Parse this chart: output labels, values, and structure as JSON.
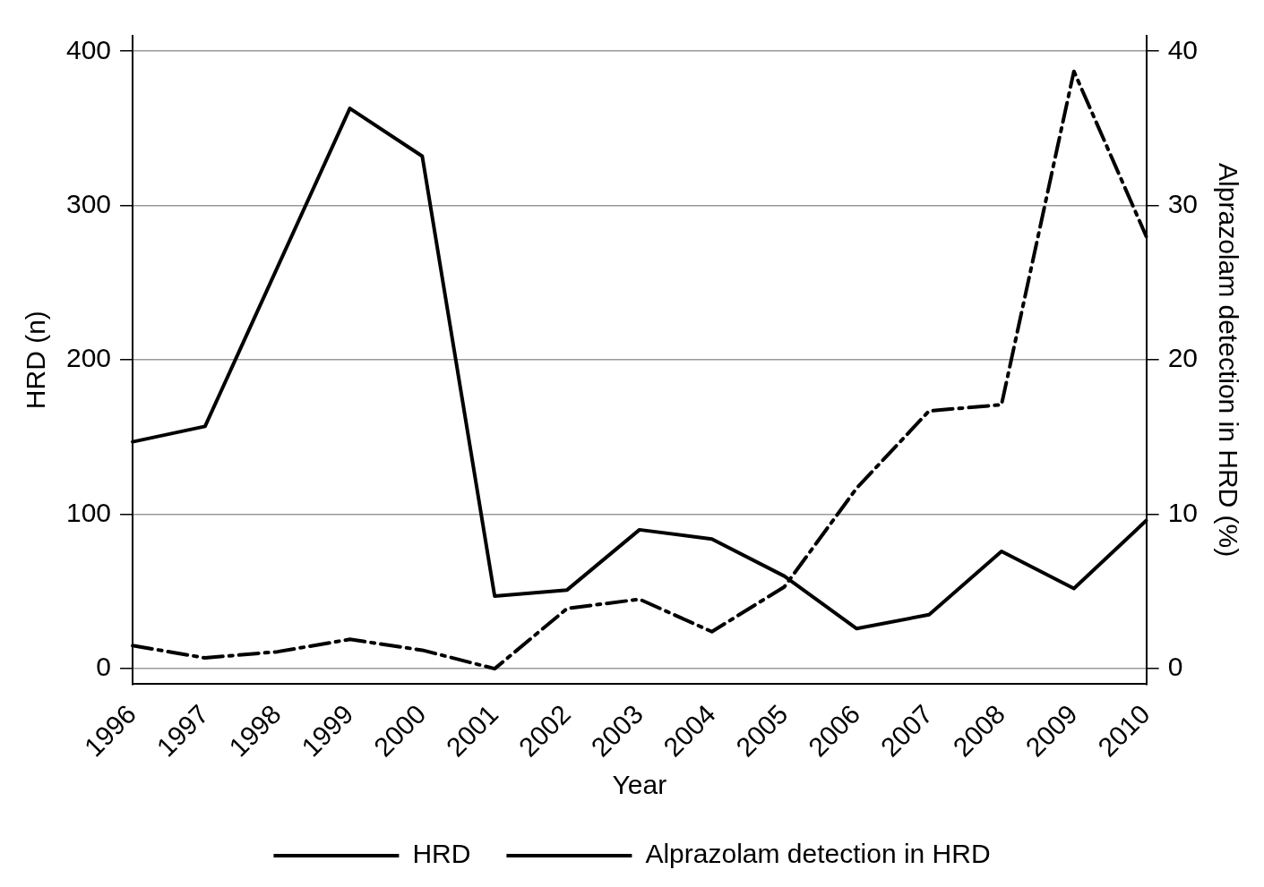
{
  "chart_data": {
    "type": "line",
    "xlabel": "Year",
    "ylabel": "HRD (n)",
    "y2label": "Alprazolam detection in HRD (%)",
    "categories": [
      "1996",
      "1997",
      "1998",
      "1999",
      "2000",
      "2001",
      "2002",
      "2003",
      "2004",
      "2005",
      "2006",
      "2007",
      "2008",
      "2009",
      "2010"
    ],
    "series": [
      {
        "name": "HRD",
        "color": "#000000",
        "line_style": "solid",
        "values": [
          147,
          157,
          260,
          363,
          332,
          47,
          51,
          90,
          84,
          60,
          26,
          35,
          76,
          52,
          96
        ]
      },
      {
        "name": "Alprazolam detection in HRD",
        "color": "#000000",
        "line_style": "dashed",
        "axis": "y2",
        "values": [
          1.5,
          0.7,
          1.1,
          1.9,
          1.2,
          0,
          3.9,
          4.5,
          2.4,
          5.3,
          11.7,
          16.7,
          17.1,
          38.7,
          28.0
        ]
      }
    ],
    "ylim": [
      -10,
      410
    ],
    "yticks": [
      0,
      100,
      200,
      300,
      400
    ],
    "y2lim": [
      -1,
      41
    ],
    "y2ticks": [
      0,
      10,
      20,
      30,
      40
    ],
    "grid": "y",
    "legend": "bottom",
    "marker": "none"
  }
}
